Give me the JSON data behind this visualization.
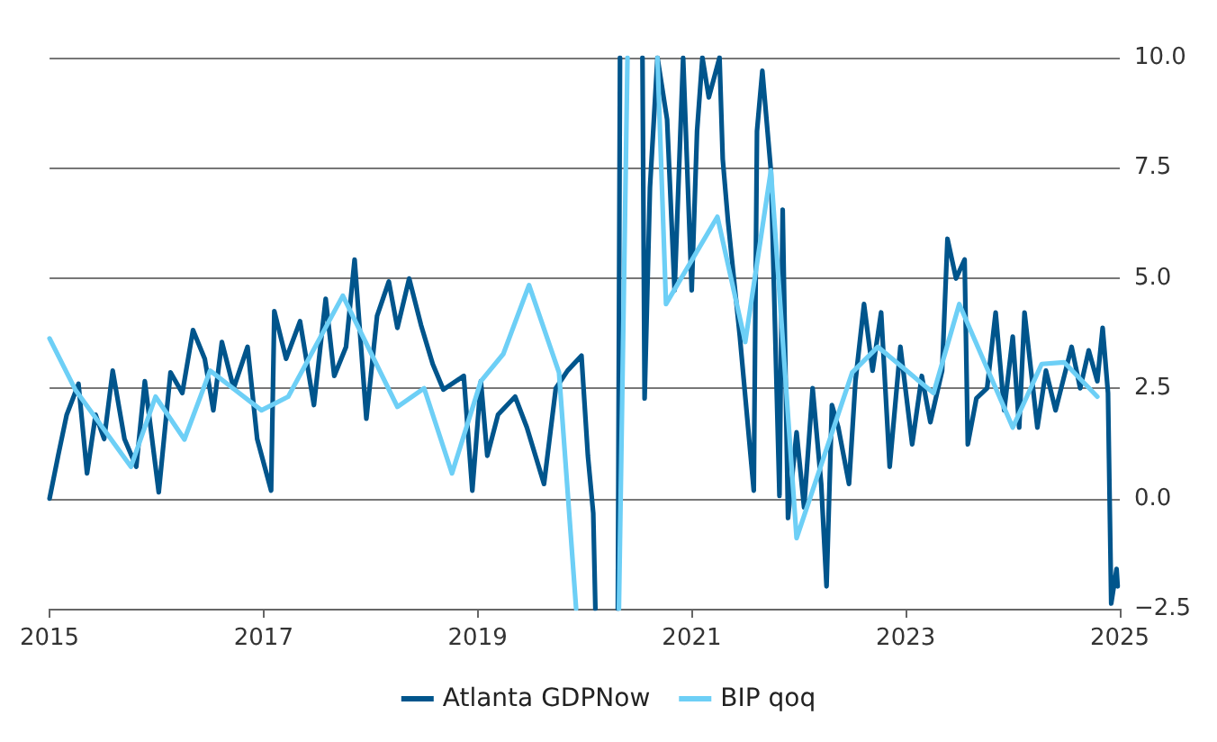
{
  "chart_data": {
    "type": "line",
    "xlim": [
      2015,
      2025
    ],
    "xticks": [
      2015,
      2017,
      2019,
      2021,
      2023,
      2025
    ],
    "ylim": [
      -2.5,
      10
    ],
    "yticks": [
      {
        "value": -2.5,
        "label": "−2.5"
      },
      {
        "value": 0,
        "label": "0.0"
      },
      {
        "value": 2.5,
        "label": "2.5"
      },
      {
        "value": 5,
        "label": "5.0"
      },
      {
        "value": 7.5,
        "label": "7.5"
      },
      {
        "value": 10,
        "label": "10.0"
      }
    ],
    "grid": "y",
    "legend": "bottom",
    "marker": "none",
    "line_style": "solid",
    "series": [
      {
        "name": "Atlanta GDPNow",
        "color": "#00558c",
        "x": [
          2015.0,
          2015.08,
          2015.16,
          2015.27,
          2015.35,
          2015.43,
          2015.51,
          2015.59,
          2015.7,
          2015.81,
          2015.89,
          2016.02,
          2016.13,
          2016.24,
          2016.34,
          2016.45,
          2016.53,
          2016.61,
          2016.72,
          2016.85,
          2016.94,
          2017.07,
          2017.1,
          2017.21,
          2017.34,
          2017.47,
          2017.58,
          2017.66,
          2017.77,
          2017.85,
          2017.96,
          2018.06,
          2018.17,
          2018.25,
          2018.36,
          2018.47,
          2018.58,
          2018.68,
          2018.87,
          2018.95,
          2019.03,
          2019.09,
          2019.19,
          2019.35,
          2019.46,
          2019.62,
          2019.73,
          2019.84,
          2019.97,
          2020.03,
          2020.08,
          2020.1,
          2020.2,
          2020.31,
          2020.33,
          2020.45,
          2020.54,
          2020.56,
          2020.61,
          2020.68,
          2020.77,
          2020.84,
          2020.92,
          2021.0,
          2021.05,
          2021.1,
          2021.16,
          2021.26,
          2021.29,
          2021.34,
          2021.45,
          2021.58,
          2021.61,
          2021.66,
          2021.74,
          2021.82,
          2021.85,
          2021.9,
          2021.98,
          2022.05,
          2022.13,
          2022.21,
          2022.26,
          2022.31,
          2022.37,
          2022.47,
          2022.53,
          2022.61,
          2022.69,
          2022.77,
          2022.85,
          2022.95,
          2023.06,
          2023.15,
          2023.23,
          2023.34,
          2023.39,
          2023.47,
          2023.55,
          2023.58,
          2023.66,
          2023.76,
          2023.84,
          2023.92,
          2024.0,
          2024.06,
          2024.11,
          2024.23,
          2024.31,
          2024.4,
          2024.55,
          2024.63,
          2024.71,
          2024.79,
          2024.84,
          2024.89,
          2024.92,
          2024.97,
          2024.98
        ],
        "values": [
          0.0,
          0.97,
          1.9,
          2.6,
          0.57,
          1.9,
          1.35,
          2.9,
          1.35,
          0.72,
          2.66,
          0.14,
          2.86,
          2.39,
          3.82,
          3.17,
          2.0,
          3.55,
          2.5,
          3.44,
          1.35,
          0.18,
          4.25,
          3.17,
          4.02,
          2.12,
          4.53,
          2.78,
          3.44,
          5.42,
          1.81,
          4.14,
          4.92,
          3.87,
          4.99,
          3.94,
          3.05,
          2.47,
          2.78,
          0.18,
          2.66,
          0.97,
          1.9,
          2.31,
          1.61,
          0.33,
          2.5,
          2.9,
          3.24,
          0.97,
          -0.33,
          -2.5,
          null,
          -2.5,
          10,
          null,
          10,
          2.27,
          7.05,
          10,
          8.6,
          4.72,
          10,
          4.72,
          8.33,
          10,
          9.1,
          10,
          7.7,
          6.27,
          3.67,
          0.18,
          8.33,
          9.7,
          7.44,
          0.06,
          6.55,
          -0.44,
          1.5,
          -0.2,
          2.5,
          0.33,
          -1.99,
          2.12,
          1.61,
          0.33,
          2.66,
          4.41,
          2.9,
          4.22,
          0.72,
          3.44,
          1.23,
          2.78,
          1.73,
          2.9,
          5.89,
          4.99,
          5.42,
          1.23,
          2.27,
          2.5,
          4.22,
          2.0,
          3.67,
          1.61,
          4.22,
          1.61,
          2.9,
          2.0,
          3.44,
          2.5,
          3.36,
          2.66,
          3.87,
          2.39,
          -2.38,
          -1.6,
          -1.99
        ]
      },
      {
        "name": "BIP qoq",
        "color": "#6dcff6",
        "x": [
          2015.0,
          2015.24,
          2015.76,
          2015.99,
          2016.26,
          2016.5,
          2016.98,
          2017.23,
          2017.74,
          2018.25,
          2018.5,
          2018.76,
          2019.03,
          2019.24,
          2019.48,
          2019.76,
          2019.92,
          2020.1,
          2020.32,
          2020.4,
          2020.5,
          2020.68,
          2020.76,
          2021.24,
          2021.5,
          2021.74,
          2021.98,
          2022.5,
          2022.74,
          2023.26,
          2023.5,
          2024.0,
          2024.27,
          2024.48,
          2024.79
        ],
        "values": [
          3.63,
          2.47,
          0.72,
          2.31,
          1.34,
          2.9,
          2.0,
          2.31,
          4.6,
          2.08,
          2.5,
          0.57,
          2.66,
          3.28,
          4.84,
          2.86,
          -2.5,
          null,
          -2.5,
          10,
          null,
          10,
          4.41,
          6.39,
          3.55,
          7.44,
          -0.9,
          2.86,
          3.44,
          2.39,
          4.41,
          1.61,
          3.05,
          3.09,
          2.31
        ]
      }
    ]
  }
}
